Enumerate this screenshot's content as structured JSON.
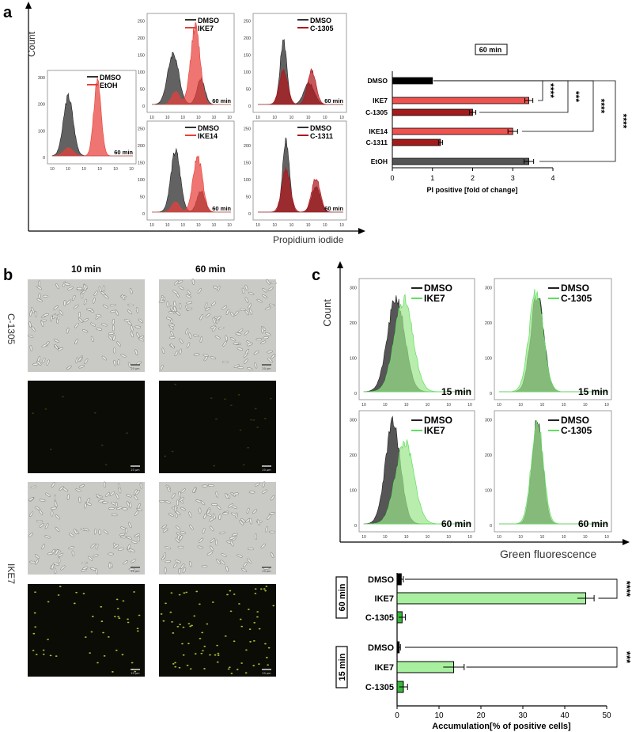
{
  "panel_a": {
    "letter": "a",
    "y_axis_label": "Count",
    "x_axis_label": "Propidium iodide",
    "histograms": [
      {
        "control": "DMSO",
        "treatment": "EtOH",
        "time": "60 min",
        "color": "#e8403a"
      },
      {
        "control": "DMSO",
        "treatment": "IKE7",
        "time": "60 min",
        "color": "#e8403a"
      },
      {
        "control": "DMSO",
        "treatment": "C-1305",
        "time": "60 min",
        "color": "#b0161c"
      },
      {
        "control": "DMSO",
        "treatment": "IKE14",
        "time": "60 min",
        "color": "#e8403a"
      },
      {
        "control": "DMSO",
        "treatment": "C-1311",
        "time": "60 min",
        "color": "#b0161c"
      }
    ],
    "y_ticks_small": [
      "0",
      "100",
      "200",
      "300"
    ],
    "y_ticks_large": [
      "0",
      "50",
      "100",
      "150",
      "200",
      "250"
    ]
  },
  "chart_data": [
    {
      "type": "bar",
      "orientation": "horizontal",
      "title": "60 min",
      "xlabel": "PI positive [fold of change]",
      "xlim": [
        0,
        4
      ],
      "x_ticks": [
        "0",
        "1",
        "2",
        "3",
        "4"
      ],
      "categories": [
        "DMSO",
        "IKE7",
        "C-1305",
        "IKE14",
        "C-1311",
        "EtOH"
      ],
      "values": [
        1.0,
        3.4,
        2.0,
        3.0,
        1.2,
        3.4
      ],
      "errors": [
        0.0,
        0.1,
        0.08,
        0.12,
        0.05,
        0.12
      ],
      "colors": [
        "#000000",
        "#ef5350",
        "#a51b1b",
        "#ef5350",
        "#a51b1b",
        "#555555"
      ],
      "significance": [
        "****",
        "***",
        "****",
        "****"
      ]
    },
    {
      "type": "bar",
      "orientation": "horizontal",
      "xlabel": "Accumulation[% of positive cells]",
      "xlim": [
        0,
        50
      ],
      "x_ticks": [
        "0",
        "10",
        "20",
        "30",
        "40",
        "50"
      ],
      "groups": [
        {
          "label": "60 min",
          "categories": [
            "DMSO",
            "IKE7",
            "C-1305"
          ],
          "values": [
            1.0,
            45.0,
            1.2
          ],
          "errors": [
            0.5,
            2.0,
            0.8
          ],
          "significance": "****"
        },
        {
          "label": "15 min",
          "categories": [
            "DMSO",
            "IKE7",
            "C-1305"
          ],
          "values": [
            0.5,
            13.5,
            1.5
          ],
          "errors": [
            0.3,
            2.5,
            1.0
          ],
          "significance": "***"
        }
      ],
      "colors": [
        "#000000",
        "#a8f0a0",
        "#39b83a"
      ]
    }
  ],
  "panel_b": {
    "letter": "b",
    "columns": [
      "10 min",
      "60 min"
    ],
    "rows": [
      "C-1305",
      "IKE7"
    ],
    "scale_bar": "20 µm"
  },
  "panel_c": {
    "letter": "c",
    "y_axis_label": "Count",
    "x_axis_label": "Green fluorescence",
    "histograms": [
      {
        "control": "DMSO",
        "treatment": "IKE7",
        "time": "15 min"
      },
      {
        "control": "DMSO",
        "treatment": "C-1305",
        "time": "15 min"
      },
      {
        "control": "DMSO",
        "treatment": "IKE7",
        "time": "60 min"
      },
      {
        "control": "DMSO",
        "treatment": "C-1305",
        "time": "60 min"
      }
    ],
    "y_ticks": [
      "0",
      "100",
      "200",
      "300"
    ],
    "colors": {
      "control": "#333333",
      "treatment_line": "#5ee05e",
      "treatment_fill": "#9be58a",
      "overlap": "#2f8a1c"
    }
  }
}
